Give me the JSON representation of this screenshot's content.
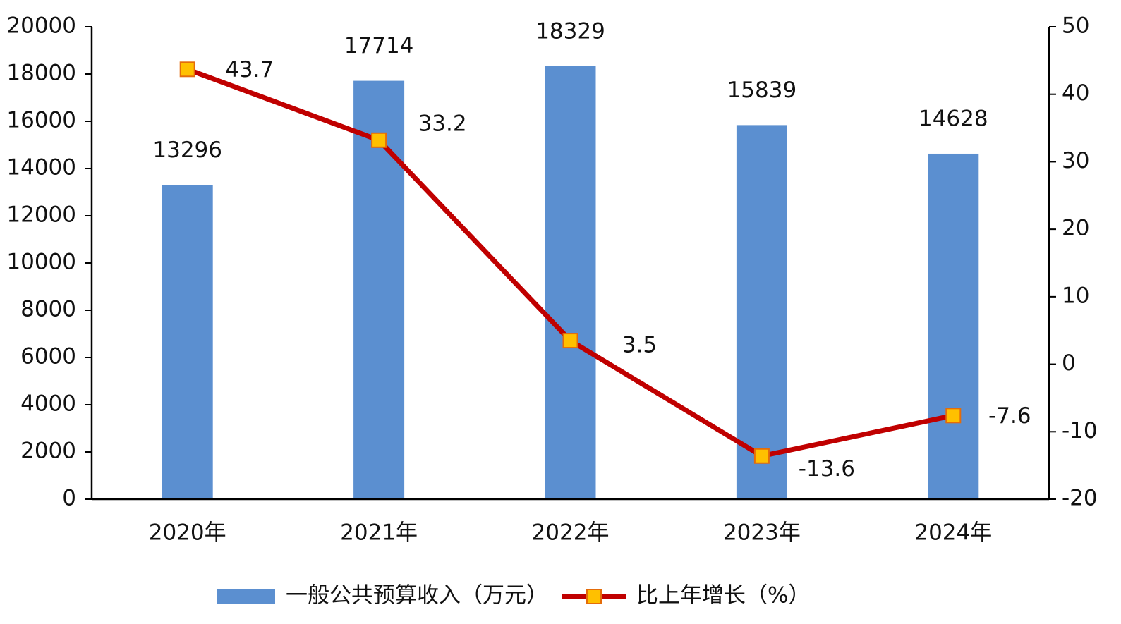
{
  "chart_data": {
    "type": "bar",
    "categories": [
      "2020年",
      "2021年",
      "2022年",
      "2023年",
      "2024年"
    ],
    "series": [
      {
        "name": "一般公共预算收入（万元）",
        "color": "#5b8fd0",
        "values": [
          13296,
          17714,
          18329,
          15839,
          14628
        ]
      },
      {
        "name": "比上年增长（%）",
        "type": "line",
        "axis": "y2",
        "color": "#c00000",
        "marker_color": "#ffc000",
        "values": [
          43.7,
          33.2,
          3.5,
          -13.6,
          -7.6
        ]
      }
    ],
    "ylim": [
      0,
      20000
    ],
    "yticks": [
      0,
      2000,
      4000,
      6000,
      8000,
      10000,
      12000,
      14000,
      16000,
      18000,
      20000
    ],
    "y2lim": [
      -20,
      50
    ],
    "y2ticks": [
      -20,
      -10,
      0,
      10,
      20,
      30,
      40,
      50
    ],
    "legend": "bottom"
  }
}
